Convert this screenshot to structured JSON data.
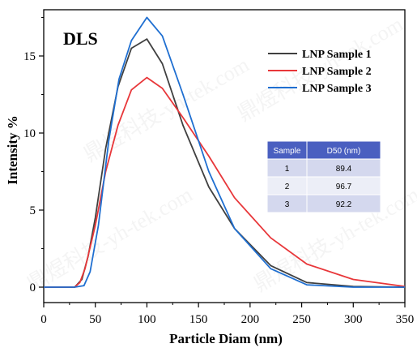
{
  "chart_data": {
    "type": "line",
    "title": "",
    "annotation": "DLS",
    "xlabel": "Particle Diam (nm)",
    "ylabel": "Intensity %",
    "xlim": [
      0,
      350
    ],
    "ylim": [
      -1,
      18
    ],
    "xticks": [
      0,
      50,
      100,
      150,
      200,
      250,
      300,
      350
    ],
    "yticks": [
      0,
      5,
      10,
      15
    ],
    "grid": false,
    "legend_position": "top-right",
    "series": [
      {
        "name": "LNP Sample 1",
        "color": "#404040",
        "points": [
          [
            0,
            0
          ],
          [
            30,
            0
          ],
          [
            37,
            0.5
          ],
          [
            43,
            2.0
          ],
          [
            50,
            4.5
          ],
          [
            60,
            9.0
          ],
          [
            72,
            13.0
          ],
          [
            85,
            15.5
          ],
          [
            100,
            16.1
          ],
          [
            115,
            14.5
          ],
          [
            135,
            10.5
          ],
          [
            160,
            6.5
          ],
          [
            185,
            3.8
          ],
          [
            220,
            1.4
          ],
          [
            255,
            0.3
          ],
          [
            300,
            0.05
          ],
          [
            350,
            0
          ]
        ]
      },
      {
        "name": "LNP Sample 2",
        "color": "#e8373a",
        "points": [
          [
            0,
            0
          ],
          [
            30,
            0
          ],
          [
            35,
            0.3
          ],
          [
            40,
            1.2
          ],
          [
            50,
            4.0
          ],
          [
            60,
            7.5
          ],
          [
            72,
            10.5
          ],
          [
            85,
            12.8
          ],
          [
            100,
            13.6
          ],
          [
            115,
            12.9
          ],
          [
            135,
            11.0
          ],
          [
            160,
            8.5
          ],
          [
            185,
            5.8
          ],
          [
            220,
            3.2
          ],
          [
            255,
            1.5
          ],
          [
            300,
            0.5
          ],
          [
            350,
            0.05
          ]
        ]
      },
      {
        "name": "LNP Sample 3",
        "color": "#1f6fd1",
        "points": [
          [
            0,
            0
          ],
          [
            30,
            0
          ],
          [
            39,
            0.1
          ],
          [
            45,
            1.0
          ],
          [
            53,
            4.0
          ],
          [
            63,
            9.5
          ],
          [
            73,
            13.5
          ],
          [
            85,
            16.0
          ],
          [
            100,
            17.5
          ],
          [
            115,
            16.3
          ],
          [
            135,
            12.5
          ],
          [
            160,
            7.5
          ],
          [
            185,
            3.8
          ],
          [
            220,
            1.2
          ],
          [
            255,
            0.15
          ],
          [
            300,
            0
          ],
          [
            350,
            0
          ]
        ]
      }
    ],
    "table": {
      "headers": [
        "Sample",
        "D50 (nm)"
      ],
      "rows": [
        [
          "1",
          "89.4"
        ],
        [
          "2",
          "96.7"
        ],
        [
          "3",
          "92.2"
        ]
      ],
      "header_color": "#4a5fc0",
      "row_colors": [
        "#d4d8ee",
        "#eceef7"
      ]
    },
    "watermark": "鼎煜科技-yh-tek.com"
  }
}
